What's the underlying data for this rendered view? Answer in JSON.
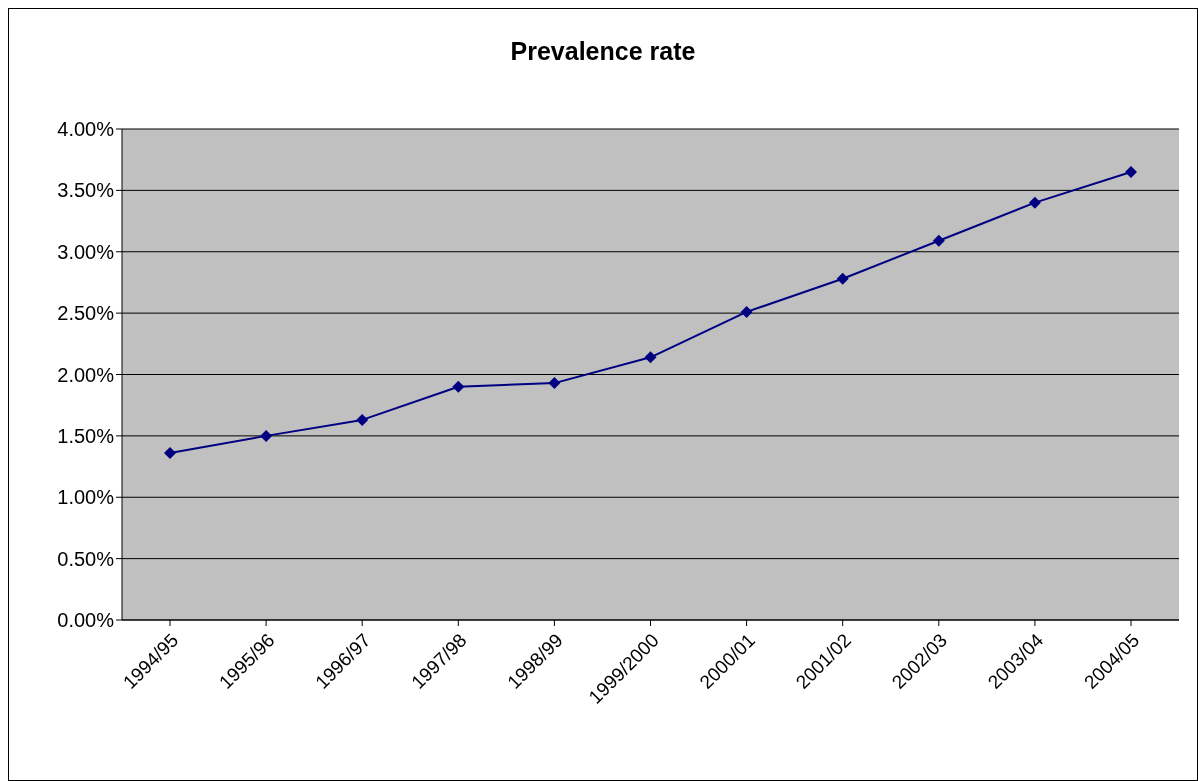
{
  "chart_data": {
    "type": "line",
    "title": "Prevalence rate",
    "categories": [
      "1994/95",
      "1995/96",
      "1996/97",
      "1997/98",
      "1998/99",
      "1999/2000",
      "2000/01",
      "2001/02",
      "2002/03",
      "2003/04",
      "2004/05"
    ],
    "series": [
      {
        "color": "#000080",
        "values": [
          1.36,
          1.5,
          1.63,
          1.9,
          1.93,
          2.14,
          2.51,
          2.78,
          3.09,
          3.4,
          3.65
        ]
      }
    ],
    "ylim": [
      0,
      4
    ],
    "yticks": [
      {
        "value": 0,
        "label": "0.00%"
      },
      {
        "value": 0.5,
        "label": "0.50%"
      },
      {
        "value": 1,
        "label": "1.00%"
      },
      {
        "value": 1.5,
        "label": "1.50%"
      },
      {
        "value": 2,
        "label": "2.00%"
      },
      {
        "value": 2.5,
        "label": "2.50%"
      },
      {
        "value": 3,
        "label": "3.00%"
      },
      {
        "value": 3.5,
        "label": "3.50%"
      },
      {
        "value": 4,
        "label": "4.00%"
      }
    ],
    "grid": "y",
    "marker": "diamond",
    "line_style": "solid"
  }
}
